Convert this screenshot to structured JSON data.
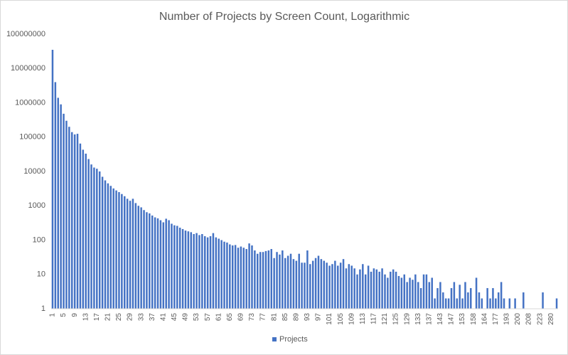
{
  "chart_data": {
    "type": "bar",
    "title": "Number of Projects by Screen Count, Logarithmic",
    "log_scale": true,
    "grid": false,
    "legend": "bottom",
    "ylim": [
      1,
      100000000
    ],
    "yticks": [
      1,
      10,
      100,
      1000,
      10000,
      100000,
      1000000,
      10000000,
      100000000
    ],
    "categories": [
      "1",
      null,
      null,
      null,
      "5",
      null,
      null,
      null,
      "9",
      null,
      null,
      null,
      "13",
      null,
      null,
      null,
      "17",
      null,
      null,
      null,
      "21",
      null,
      null,
      null,
      "25",
      null,
      null,
      null,
      "29",
      null,
      null,
      null,
      "33",
      null,
      null,
      null,
      "37",
      null,
      null,
      null,
      "41",
      null,
      null,
      null,
      "45",
      null,
      null,
      null,
      "49",
      null,
      null,
      null,
      "53",
      null,
      null,
      null,
      "57",
      null,
      null,
      null,
      "61",
      null,
      null,
      null,
      "65",
      null,
      null,
      null,
      "69",
      null,
      null,
      null,
      "73",
      null,
      null,
      null,
      "77",
      null,
      null,
      null,
      "81",
      null,
      null,
      null,
      "85",
      null,
      null,
      null,
      "89",
      null,
      null,
      null,
      "93",
      null,
      null,
      null,
      "97",
      null,
      null,
      null,
      "101",
      null,
      null,
      null,
      "105",
      null,
      null,
      null,
      "109",
      null,
      null,
      null,
      "113",
      null,
      null,
      null,
      "117",
      null,
      null,
      null,
      "121",
      null,
      null,
      null,
      "125",
      null,
      null,
      null,
      "129",
      null,
      null,
      null,
      "133",
      null,
      null,
      null,
      "137",
      null,
      null,
      null,
      "143",
      null,
      null,
      null,
      "147",
      null,
      null,
      null,
      "153",
      null,
      null,
      null,
      "158",
      null,
      null,
      null,
      "164",
      null,
      null,
      null,
      "177",
      null,
      null,
      null,
      "193",
      null,
      null,
      null,
      "200",
      null,
      null,
      null,
      "208",
      null,
      null,
      null,
      "223",
      null,
      null,
      null,
      "280",
      null,
      null
    ],
    "series": [
      {
        "name": "Projects",
        "color": "#4472c4",
        "values": [
          35000000,
          4000000,
          1400000,
          900000,
          480000,
          300000,
          200000,
          140000,
          120000,
          125000,
          65000,
          43000,
          33000,
          23000,
          16000,
          13000,
          12000,
          10000,
          7000,
          5500,
          4500,
          3800,
          3200,
          2800,
          2500,
          2200,
          1900,
          1600,
          1400,
          1600,
          1200,
          1000,
          900,
          750,
          650,
          600,
          520,
          460,
          430,
          380,
          330,
          420,
          380,
          300,
          270,
          260,
          230,
          210,
          190,
          180,
          170,
          150,
          160,
          140,
          150,
          130,
          120,
          130,
          160,
          120,
          110,
          100,
          90,
          85,
          75,
          70,
          72,
          60,
          65,
          60,
          55,
          80,
          70,
          50,
          40,
          45,
          45,
          48,
          50,
          55,
          30,
          45,
          38,
          50,
          30,
          35,
          40,
          28,
          25,
          40,
          22,
          22,
          50,
          20,
          25,
          30,
          35,
          28,
          25,
          22,
          18,
          20,
          25,
          18,
          22,
          28,
          15,
          20,
          18,
          15,
          10,
          14,
          20,
          10,
          18,
          12,
          15,
          14,
          12,
          15,
          10,
          8,
          12,
          14,
          12,
          9,
          8,
          10,
          6,
          8,
          7,
          10,
          6,
          4,
          10,
          10,
          6,
          8,
          2,
          4,
          6,
          3,
          2,
          2,
          4,
          6,
          2,
          5,
          2,
          6,
          3,
          4,
          1,
          8,
          3,
          2,
          1,
          4,
          2,
          4,
          2,
          3,
          6,
          2,
          1,
          2,
          1,
          2,
          1,
          1,
          3,
          1,
          1,
          1,
          1,
          1,
          1,
          3,
          1,
          1,
          1,
          1,
          2
        ]
      }
    ]
  }
}
